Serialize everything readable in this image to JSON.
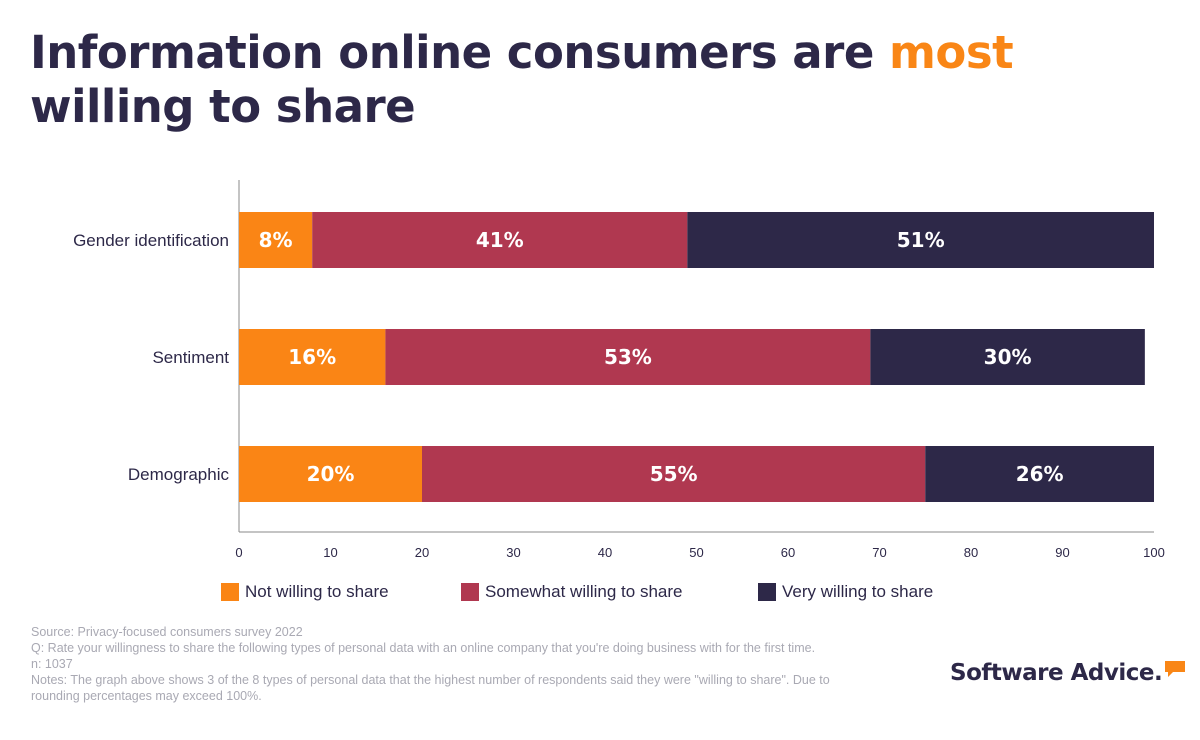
{
  "title": {
    "part1": "Information online consumers are ",
    "accent": "most",
    "part2": " willing to share"
  },
  "colors": {
    "title": "#2d2848",
    "accent": "#f98616",
    "not_willing": "#fa8515",
    "somewhat_willing": "#b03850",
    "very_willing": "#2d2848",
    "axis": "#888888",
    "footnote": "#a9a9b3"
  },
  "chart_data": {
    "type": "bar",
    "orientation": "horizontal",
    "stacked": true,
    "categories": [
      "Gender identification",
      "Sentiment",
      "Demographic"
    ],
    "series": [
      {
        "name": "Not willing to share",
        "values": [
          8,
          16,
          20
        ],
        "labels": [
          "8%",
          "16%",
          "20%"
        ],
        "color": "#fa8515"
      },
      {
        "name": "Somewhat willing to share",
        "values": [
          41,
          53,
          55
        ],
        "labels": [
          "41%",
          "53%",
          "55%"
        ],
        "color": "#b03850"
      },
      {
        "name": "Very willing to share",
        "values": [
          51,
          30,
          26
        ],
        "labels": [
          "51%",
          "30%",
          "26%"
        ],
        "color": "#2d2848"
      }
    ],
    "xlim": [
      0,
      100
    ],
    "xticks": [
      0,
      10,
      20,
      30,
      40,
      50,
      60,
      70,
      80,
      90,
      100
    ],
    "grid": false,
    "legend_position": "bottom"
  },
  "legend": [
    {
      "label": "Not willing to share",
      "color": "#fa8515"
    },
    {
      "label": "Somewhat willing to share",
      "color": "#b03850"
    },
    {
      "label": "Very willing to share",
      "color": "#2d2848"
    }
  ],
  "footnote": {
    "source": "Source: Privacy-focused consumers survey 2022",
    "question": "Q: Rate your willingness to share the following types of personal data with an online company that you're doing business with for the first time.",
    "n": "n: 1037",
    "notes": "Notes: The graph above shows 3 of the 8 types of personal data that the highest number of respondents said they were \"willing to share\". Due to rounding percentages may exceed 100%."
  },
  "logo": {
    "text": "Software Advice.",
    "icon": "speech-bubble-icon"
  }
}
